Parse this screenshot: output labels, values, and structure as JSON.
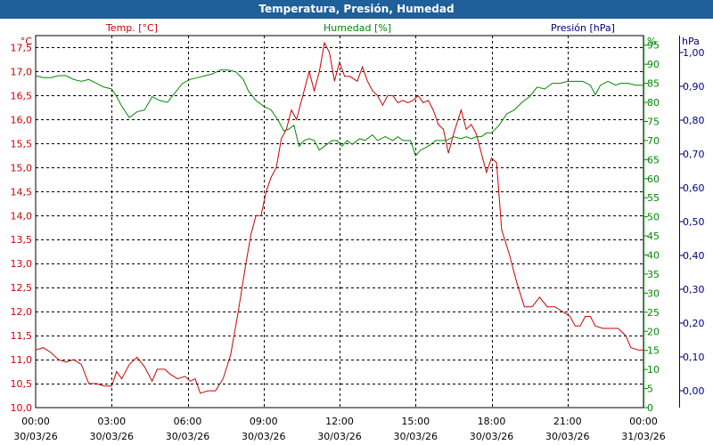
{
  "window": {
    "title": "Temperatura, Presión, Humedad"
  },
  "chart_data": {
    "type": "line",
    "title": "Temperatura, Presión, Humedad",
    "grid": true,
    "colors": {
      "temperature": "#cc0000",
      "humidity": "#008800",
      "pressure": "#000080",
      "grid": "#000000",
      "titlebar": "#1f5f9a"
    },
    "x": {
      "range": [
        0,
        24
      ],
      "ticks": [
        {
          "t": 0,
          "time": "00:00",
          "date": "30/03/26"
        },
        {
          "t": 3,
          "time": "03:00",
          "date": "30/03/26"
        },
        {
          "t": 6,
          "time": "06:00",
          "date": "30/03/26"
        },
        {
          "t": 9,
          "time": "09:00",
          "date": "30/03/26"
        },
        {
          "t": 12,
          "time": "12:00",
          "date": "30/03/26"
        },
        {
          "t": 15,
          "time": "15:00",
          "date": "30/03/26"
        },
        {
          "t": 18,
          "time": "18:00",
          "date": "30/03/26"
        },
        {
          "t": 21,
          "time": "21:00",
          "date": "30/03/26"
        },
        {
          "t": 24,
          "time": "00:00",
          "date": "31/03/26"
        }
      ]
    },
    "axes": {
      "temperature": {
        "label": "Temp. [°C]",
        "unit": "°C",
        "range": [
          10.0,
          17.75
        ],
        "ticks": [
          "10,0",
          "10,5",
          "11,0",
          "11,5",
          "12,0",
          "12,5",
          "13,0",
          "13,5",
          "14,0",
          "14,5",
          "15,0",
          "15,5",
          "16,0",
          "16,5",
          "17,0",
          "17,5"
        ]
      },
      "humidity": {
        "label": "Humedad [%]",
        "unit": "%",
        "range": [
          0,
          97.5
        ],
        "ticks": [
          "0",
          "5",
          "10",
          "15",
          "20",
          "25",
          "30",
          "35",
          "40",
          "45",
          "50",
          "55",
          "60",
          "65",
          "70",
          "75",
          "80",
          "85",
          "90",
          "95"
        ]
      },
      "pressure": {
        "label": "Presión [hPa]",
        "unit": "hPa",
        "range": [
          -0.05,
          1.05
        ],
        "ticks": [
          "0,00",
          "0,10",
          "0,20",
          "0,30",
          "0,40",
          "0,50",
          "0,60",
          "0,70",
          "0,80",
          "0,90",
          "1,00"
        ]
      }
    },
    "series": [
      {
        "name": "Temp. [°C]",
        "axis": "temperature",
        "points": [
          [
            0,
            11.2
          ],
          [
            0.3,
            11.25
          ],
          [
            0.6,
            11.15
          ],
          [
            0.9,
            11.0
          ],
          [
            1.2,
            10.95
          ],
          [
            1.5,
            11.0
          ],
          [
            1.8,
            10.9
          ],
          [
            2.1,
            10.5
          ],
          [
            2.4,
            10.5
          ],
          [
            2.7,
            10.45
          ],
          [
            3.0,
            10.45
          ],
          [
            3.2,
            10.75
          ],
          [
            3.4,
            10.6
          ],
          [
            3.7,
            10.9
          ],
          [
            4.0,
            11.05
          ],
          [
            4.3,
            10.85
          ],
          [
            4.6,
            10.55
          ],
          [
            4.8,
            10.8
          ],
          [
            5.1,
            10.8
          ],
          [
            5.3,
            10.7
          ],
          [
            5.6,
            10.6
          ],
          [
            5.9,
            10.65
          ],
          [
            6.1,
            10.55
          ],
          [
            6.3,
            10.6
          ],
          [
            6.5,
            10.3
          ],
          [
            6.8,
            10.35
          ],
          [
            7.1,
            10.35
          ],
          [
            7.4,
            10.6
          ],
          [
            7.7,
            11.1
          ],
          [
            8.0,
            12.0
          ],
          [
            8.3,
            13.0
          ],
          [
            8.5,
            13.6
          ],
          [
            8.7,
            14.0
          ],
          [
            8.9,
            14.0
          ],
          [
            9.1,
            14.5
          ],
          [
            9.3,
            14.8
          ],
          [
            9.5,
            15.0
          ],
          [
            9.7,
            15.6
          ],
          [
            9.9,
            15.8
          ],
          [
            10.1,
            16.2
          ],
          [
            10.3,
            16.0
          ],
          [
            10.6,
            16.6
          ],
          [
            10.8,
            17.0
          ],
          [
            11.0,
            16.6
          ],
          [
            11.2,
            17.0
          ],
          [
            11.4,
            17.6
          ],
          [
            11.6,
            17.4
          ],
          [
            11.8,
            16.8
          ],
          [
            12.0,
            17.2
          ],
          [
            12.2,
            16.9
          ],
          [
            12.4,
            16.9
          ],
          [
            12.7,
            16.8
          ],
          [
            12.9,
            17.1
          ],
          [
            13.1,
            16.8
          ],
          [
            13.3,
            16.6
          ],
          [
            13.5,
            16.5
          ],
          [
            13.7,
            16.3
          ],
          [
            13.9,
            16.5
          ],
          [
            14.1,
            16.5
          ],
          [
            14.3,
            16.35
          ],
          [
            14.5,
            16.4
          ],
          [
            14.7,
            16.35
          ],
          [
            14.9,
            16.4
          ],
          [
            15.1,
            16.5
          ],
          [
            15.3,
            16.35
          ],
          [
            15.5,
            16.4
          ],
          [
            15.7,
            16.2
          ],
          [
            15.9,
            15.9
          ],
          [
            16.1,
            15.8
          ],
          [
            16.3,
            15.3
          ],
          [
            16.5,
            15.7
          ],
          [
            16.8,
            16.2
          ],
          [
            17.0,
            15.8
          ],
          [
            17.2,
            15.9
          ],
          [
            17.4,
            15.7
          ],
          [
            17.6,
            15.3
          ],
          [
            17.8,
            14.9
          ],
          [
            18.0,
            15.2
          ],
          [
            18.2,
            15.1
          ],
          [
            18.4,
            13.7
          ],
          [
            18.7,
            13.2
          ],
          [
            19.0,
            12.6
          ],
          [
            19.3,
            12.1
          ],
          [
            19.6,
            12.1
          ],
          [
            19.9,
            12.3
          ],
          [
            20.2,
            12.1
          ],
          [
            20.5,
            12.1
          ],
          [
            20.8,
            12.0
          ],
          [
            21.1,
            11.9
          ],
          [
            21.3,
            11.7
          ],
          [
            21.5,
            11.7
          ],
          [
            21.7,
            11.9
          ],
          [
            21.9,
            11.9
          ],
          [
            22.1,
            11.7
          ],
          [
            22.4,
            11.65
          ],
          [
            22.7,
            11.65
          ],
          [
            23.0,
            11.65
          ],
          [
            23.3,
            11.5
          ],
          [
            23.5,
            11.25
          ],
          [
            23.8,
            11.2
          ],
          [
            24.0,
            11.2
          ]
        ]
      },
      {
        "name": "Humedad [%]",
        "axis": "humidity",
        "points": [
          [
            0,
            87
          ],
          [
            0.3,
            86.5
          ],
          [
            0.6,
            86.5
          ],
          [
            0.9,
            87
          ],
          [
            1.2,
            87
          ],
          [
            1.5,
            86
          ],
          [
            1.8,
            85.5
          ],
          [
            2.1,
            86
          ],
          [
            2.4,
            85
          ],
          [
            2.7,
            84
          ],
          [
            3.0,
            83.5
          ],
          [
            3.2,
            81.5
          ],
          [
            3.4,
            79
          ],
          [
            3.7,
            76
          ],
          [
            4.0,
            77.5
          ],
          [
            4.3,
            78
          ],
          [
            4.6,
            81.5
          ],
          [
            4.9,
            80.5
          ],
          [
            5.2,
            80
          ],
          [
            5.5,
            82.5
          ],
          [
            5.8,
            85
          ],
          [
            6.1,
            86
          ],
          [
            6.4,
            86.5
          ],
          [
            6.7,
            87
          ],
          [
            7.0,
            87.5
          ],
          [
            7.3,
            88.5
          ],
          [
            7.6,
            88.5
          ],
          [
            7.9,
            88
          ],
          [
            8.2,
            86
          ],
          [
            8.4,
            83
          ],
          [
            8.7,
            80.5
          ],
          [
            9.0,
            79
          ],
          [
            9.3,
            78
          ],
          [
            9.6,
            75
          ],
          [
            9.8,
            72.5
          ],
          [
            10.0,
            73
          ],
          [
            10.2,
            74
          ],
          [
            10.4,
            68.5
          ],
          [
            10.6,
            70
          ],
          [
            10.8,
            70.5
          ],
          [
            11.0,
            70
          ],
          [
            11.2,
            67.5
          ],
          [
            11.4,
            68.5
          ],
          [
            11.7,
            70
          ],
          [
            11.9,
            70
          ],
          [
            12.1,
            68.5
          ],
          [
            12.3,
            70
          ],
          [
            12.5,
            69
          ],
          [
            12.8,
            70.5
          ],
          [
            13.0,
            70
          ],
          [
            13.3,
            71.5
          ],
          [
            13.5,
            70
          ],
          [
            13.8,
            71
          ],
          [
            14.1,
            70
          ],
          [
            14.3,
            71
          ],
          [
            14.5,
            70
          ],
          [
            14.8,
            70
          ],
          [
            15.0,
            66
          ],
          [
            15.2,
            67.5
          ],
          [
            15.5,
            68.5
          ],
          [
            15.8,
            70
          ],
          [
            16.0,
            70
          ],
          [
            16.2,
            70
          ],
          [
            16.5,
            71
          ],
          [
            16.8,
            70.5
          ],
          [
            17.0,
            71
          ],
          [
            17.2,
            70.5
          ],
          [
            17.4,
            71
          ],
          [
            17.6,
            71
          ],
          [
            17.8,
            72
          ],
          [
            18.0,
            72
          ],
          [
            18.3,
            74
          ],
          [
            18.6,
            77
          ],
          [
            18.9,
            78
          ],
          [
            19.2,
            80
          ],
          [
            19.5,
            81.5
          ],
          [
            19.8,
            84
          ],
          [
            20.1,
            83.5
          ],
          [
            20.4,
            85
          ],
          [
            20.7,
            85
          ],
          [
            21.0,
            85.5
          ],
          [
            21.3,
            85.5
          ],
          [
            21.6,
            85.5
          ],
          [
            21.9,
            84.5
          ],
          [
            22.1,
            82
          ],
          [
            22.3,
            84.5
          ],
          [
            22.6,
            85.5
          ],
          [
            22.9,
            84.5
          ],
          [
            23.1,
            85
          ],
          [
            23.4,
            85
          ],
          [
            23.7,
            84.5
          ],
          [
            24.0,
            84.5
          ]
        ]
      }
    ]
  }
}
